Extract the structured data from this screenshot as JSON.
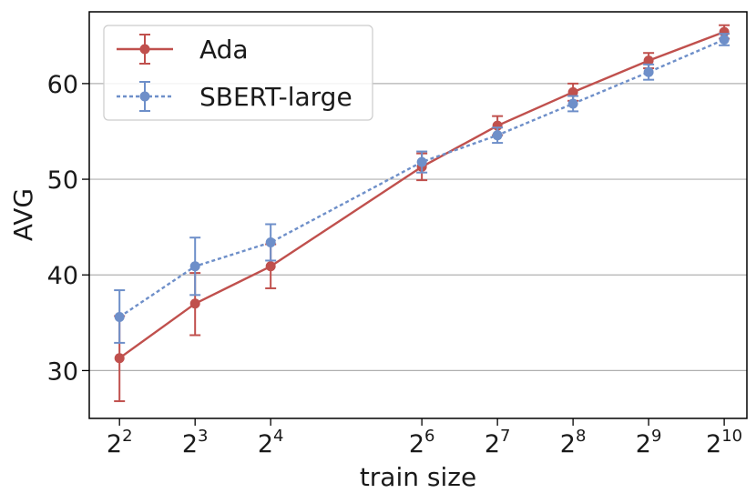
{
  "chart_data": {
    "type": "line",
    "xlabel": "train size",
    "ylabel": "AVG",
    "x_scale": "log2",
    "x": [
      4,
      8,
      16,
      64,
      128,
      256,
      512,
      1024
    ],
    "x_tick_labels": [
      {
        "base": "2",
        "exp": "2"
      },
      {
        "base": "2",
        "exp": "3"
      },
      {
        "base": "2",
        "exp": "4"
      },
      {
        "base": "2",
        "exp": "6"
      },
      {
        "base": "2",
        "exp": "7"
      },
      {
        "base": "2",
        "exp": "8"
      },
      {
        "base": "2",
        "exp": "9"
      },
      {
        "base": "2",
        "exp": "10"
      }
    ],
    "y_ticks": [
      30,
      40,
      50,
      60
    ],
    "ylim": [
      25,
      67.5
    ],
    "grid": "horizontal",
    "legend_position": "top-left",
    "series": [
      {
        "name": "Ada",
        "color": "#c0504d",
        "line_style": "solid",
        "values": [
          31.3,
          37.0,
          40.9,
          51.3,
          55.6,
          59.1,
          62.4,
          65.4
        ],
        "err_low": [
          26.8,
          33.7,
          38.6,
          49.9,
          54.6,
          58.2,
          61.6,
          64.7
        ],
        "err_high": [
          35.7,
          40.2,
          43.2,
          52.7,
          56.6,
          60.0,
          63.2,
          66.1
        ]
      },
      {
        "name": "SBERT-large",
        "color": "#6e8fc9",
        "line_style": "dashed",
        "values": [
          35.6,
          40.9,
          43.4,
          51.8,
          54.6,
          57.9,
          61.2,
          64.6
        ],
        "err_low": [
          32.9,
          37.9,
          41.5,
          50.7,
          53.8,
          57.1,
          60.4,
          64.0
        ],
        "err_high": [
          38.4,
          43.9,
          45.3,
          52.9,
          55.4,
          58.7,
          62.0,
          65.2
        ]
      }
    ]
  }
}
